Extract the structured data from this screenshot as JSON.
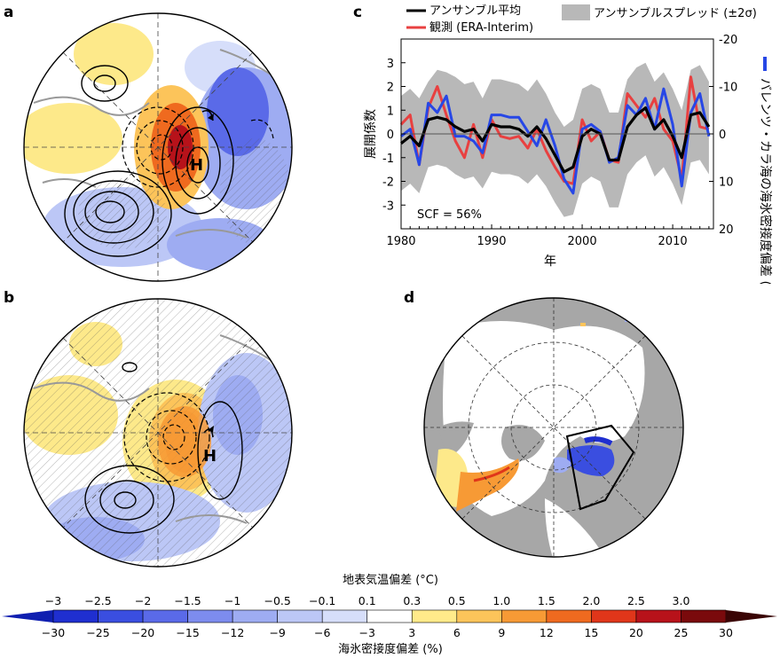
{
  "panels": {
    "a": "a",
    "b": "b",
    "c": "c",
    "d": "d"
  },
  "map_labels": {
    "a_high": "H",
    "b_high": "H"
  },
  "chart_data": {
    "type": "line",
    "x": [
      1980,
      1981,
      1982,
      1983,
      1984,
      1985,
      1986,
      1987,
      1988,
      1989,
      1990,
      1991,
      1992,
      1993,
      1994,
      1995,
      1996,
      1997,
      1998,
      1999,
      2000,
      2001,
      2002,
      2003,
      2004,
      2005,
      2006,
      2007,
      2008,
      2009,
      2010,
      2011,
      2012,
      2013,
      2014
    ],
    "series": [
      {
        "name": "アンサンブル平均",
        "color": "#000000",
        "values": [
          -0.4,
          -0.1,
          -0.5,
          0.6,
          0.7,
          0.6,
          0.3,
          0.1,
          0.2,
          -0.3,
          0.4,
          0.3,
          0.3,
          0.2,
          -0.1,
          0.3,
          -0.2,
          -0.9,
          -1.6,
          -1.4,
          -0.1,
          0.2,
          0.0,
          -1.1,
          -1.1,
          0.3,
          0.8,
          1.1,
          0.2,
          0.6,
          -0.1,
          -1.0,
          0.8,
          0.9,
          0.3
        ]
      },
      {
        "name": "観測 (ERA-Interim)",
        "color": "#e84040",
        "values": [
          0.4,
          0.8,
          -1.3,
          1.1,
          2.0,
          0.8,
          -0.3,
          -1.0,
          0.4,
          -1.0,
          0.6,
          -0.1,
          -0.2,
          -0.1,
          -0.6,
          0.2,
          -0.7,
          -1.4,
          -2.0,
          -2.1,
          0.6,
          -0.3,
          0.1,
          -1.1,
          -1.2,
          1.7,
          1.2,
          0.7,
          1.5,
          0.2,
          -0.3,
          -1.9,
          2.4,
          0.3,
          0.2
        ]
      },
      {
        "name": "バレンツ・カラ海の海氷密接度偏差",
        "color": "#2747e6",
        "values": [
          -0.1,
          0.2,
          -1.3,
          1.3,
          0.9,
          1.6,
          -0.1,
          -0.1,
          -0.3,
          -0.8,
          0.8,
          0.8,
          0.7,
          0.7,
          0.1,
          -0.5,
          0.6,
          -0.5,
          -1.9,
          -2.5,
          0.2,
          0.4,
          0.1,
          -1.2,
          -1.0,
          1.2,
          0.8,
          1.5,
          0.2,
          1.9,
          0.4,
          -2.2,
          0.9,
          1.7,
          -0.1
        ]
      }
    ],
    "spread": {
      "name": "アンサンブルスプレッド (±2σ)",
      "upper": [
        1.6,
        1.9,
        1.5,
        2.2,
        2.7,
        2.6,
        2.4,
        2.1,
        2.2,
        1.5,
        2.3,
        2.3,
        2.2,
        2.1,
        1.8,
        2.3,
        1.7,
        0.9,
        0.3,
        0.6,
        1.9,
        2.1,
        1.9,
        0.9,
        0.9,
        2.3,
        2.8,
        3.0,
        2.2,
        2.6,
        1.9,
        1.0,
        2.7,
        2.9,
        2.2
      ],
      "lower": [
        -2.4,
        -2.1,
        -2.5,
        -1.4,
        -1.3,
        -1.4,
        -1.7,
        -1.9,
        -1.8,
        -2.3,
        -1.6,
        -1.7,
        -1.7,
        -1.8,
        -2.1,
        -1.7,
        -2.2,
        -2.9,
        -3.5,
        -3.4,
        -2.1,
        -1.8,
        -2.0,
        -3.1,
        -3.1,
        -1.7,
        -1.2,
        -0.9,
        -1.8,
        -1.4,
        -2.1,
        -3.0,
        -1.2,
        -1.1,
        -1.7
      ]
    },
    "ylabel": "展開係数",
    "y2label": "バレンツ・カラ海の海氷密接度偏差 (%)",
    "xlabel": "年",
    "ylim": [
      -4,
      4
    ],
    "y2lim": [
      20,
      -20
    ],
    "yticks": [
      "-3",
      "-2",
      "-1",
      "0",
      "1",
      "2",
      "3"
    ],
    "y2ticks": [
      "-20",
      "-10",
      "0",
      "10",
      "20"
    ],
    "xticks": [
      "1980",
      "1990",
      "2000",
      "2010"
    ],
    "annotation": "SCF = 56%",
    "legend": {
      "mean": "アンサンブル平均",
      "obs": "観測 (ERA-Interim)",
      "spread": "アンサンブルスプレッド (±2σ)"
    }
  },
  "colorbar": {
    "title_top": "地表気温偏差 (°C)",
    "title_bottom": "海氷密接度偏差 (%)",
    "top_labels": [
      "−3",
      "−2.5",
      "−2",
      "−1.5",
      "−1",
      "−0.5",
      "−0.1",
      "0.1",
      "0.3",
      "0.5",
      "1.0",
      "1.5",
      "2.0",
      "2.5",
      "3.0"
    ],
    "bottom_labels": [
      "−30",
      "−25",
      "−20",
      "−15",
      "−12",
      "−9",
      "−6",
      "−3",
      "3",
      "6",
      "9",
      "12",
      "15",
      "20",
      "25",
      "30"
    ],
    "colors": [
      "#1f2fd0",
      "#3a4ee0",
      "#5a6ae8",
      "#7d8cee",
      "#9eacf2",
      "#bcc7f6",
      "#d6defa",
      "#ffffff",
      "#ffea8a",
      "#fcc45a",
      "#f79a35",
      "#ef6a1f",
      "#e0361a",
      "#b7121a",
      "#7a0a0c"
    ],
    "end_low": "#0f1fb0",
    "end_high": "#3a0505"
  }
}
